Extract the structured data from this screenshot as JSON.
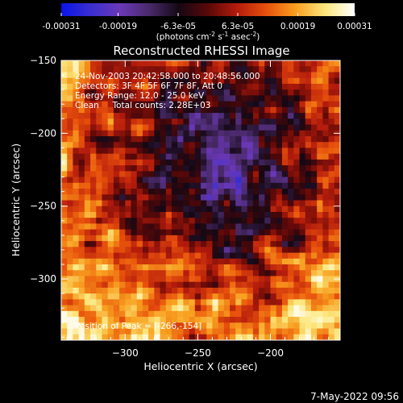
{
  "chart_data": {
    "type": "heatmap",
    "title": "Reconstructed RHESSI Image",
    "xlabel": "Heliocentric X (arcsec)",
    "ylabel": "Heliocentric Y (arcsec)",
    "xlim": [
      -344,
      -152
    ],
    "ylim": [
      -342,
      -150
    ],
    "x_ticks": [
      -300,
      -250,
      -200
    ],
    "y_ticks": [
      -150,
      -200,
      -250,
      -300
    ],
    "colorbar": {
      "range": [
        -0.00031,
        0.00031
      ],
      "tick_labels": [
        "-0.00031",
        "-0.00019",
        "-6.3e-05",
        "6.3e-05",
        "0.00019",
        "0.00031"
      ],
      "unit_label": "(photons cm",
      "unit_exp1": "-2",
      "unit_mid": " s",
      "unit_exp2": "-1",
      "unit_mid2": " asec",
      "unit_exp3": "-2",
      "unit_end": ")",
      "colors": [
        "#0a14e6",
        "#3a2fd0",
        "#6a38b8",
        "#4a2a6a",
        "#140814",
        "#5a0808",
        "#b41c0c",
        "#e8520c",
        "#f8a020",
        "#fce880",
        "#ffffff"
      ]
    },
    "annotations": [
      "24-Nov-2003 20:42:58.000 to 20:48:56.000",
      "Detectors: 3F 4F 5F 6F 7F 8F, Att 0",
      "Energy Range: 12.0 - 25.0 keV",
      "Clean     Total counts: 2.28E+03"
    ],
    "peak_label": "Position of Peak = [-266,-154]",
    "grid": false
  },
  "footer": {
    "date": "7-May-2022 09:56"
  }
}
